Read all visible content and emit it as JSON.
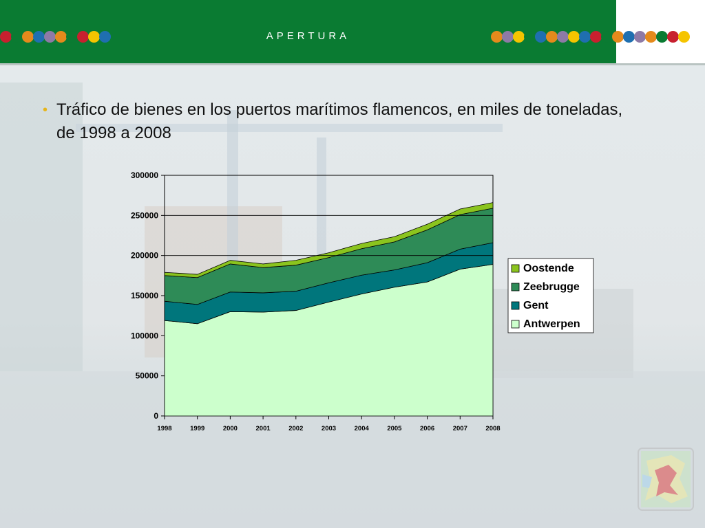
{
  "header": {
    "title": "APERTURA",
    "color": "#0a7b32",
    "dot_colors_left": [
      "#c8202f",
      "#0a7b32",
      "#e58a1c",
      "#1f6fb0",
      "#8e7aa6",
      "#e58a1c",
      "#0a7b32",
      "#c8202f",
      "#f5c400",
      "#1f6fb0"
    ],
    "dot_colors_right": [
      "#e58a1c",
      "#8e7aa6",
      "#f5c400",
      "#0a7b32",
      "#1f6fb0",
      "#e58a1c",
      "#8e7aa6",
      "#f5c400",
      "#1f6fb0",
      "#c8202f",
      "#0a7b32",
      "#e58a1c",
      "#1f6fb0",
      "#8e7aa6",
      "#e58a1c",
      "#0a7b32",
      "#c8202f",
      "#f5c400"
    ]
  },
  "slide": {
    "bullet_text": "Tráfico de bienes en los puertos marítimos flamencos, en miles de toneladas, de 1998 a 2008",
    "bullet_color": "#e6b51a"
  },
  "chart_data": {
    "type": "area",
    "stacked": true,
    "x": [
      "1998",
      "1999",
      "2000",
      "2001",
      "2002",
      "2003",
      "2004",
      "2005",
      "2006",
      "2007",
      "2008"
    ],
    "ylim": [
      0,
      300000
    ],
    "yticks": [
      "0",
      "50000",
      "100000",
      "150000",
      "200000",
      "250000",
      "300000"
    ],
    "grid": "horizontal at 200000, 250000, 300000",
    "legend_position": "right",
    "series": [
      {
        "name": "Antwerpen",
        "color": "#ccffcc",
        "values": [
          119000,
          115000,
          130000,
          129500,
          131500,
          142000,
          152000,
          160500,
          167000,
          183000,
          189000
        ]
      },
      {
        "name": "Gent",
        "color": "#00767c",
        "values": [
          24000,
          24000,
          24500,
          24000,
          24000,
          24000,
          23500,
          21500,
          24000,
          25000,
          27000
        ]
      },
      {
        "name": "Zeebrugge",
        "color": "#2e8b57",
        "values": [
          32000,
          33500,
          35000,
          31500,
          32500,
          31500,
          33000,
          35000,
          41000,
          43000,
          43000
        ]
      },
      {
        "name": "Oostende",
        "color": "#8bc41e",
        "values": [
          4000,
          4000,
          4500,
          4500,
          6000,
          6000,
          6500,
          6500,
          7000,
          7000,
          7000
        ]
      }
    ]
  }
}
